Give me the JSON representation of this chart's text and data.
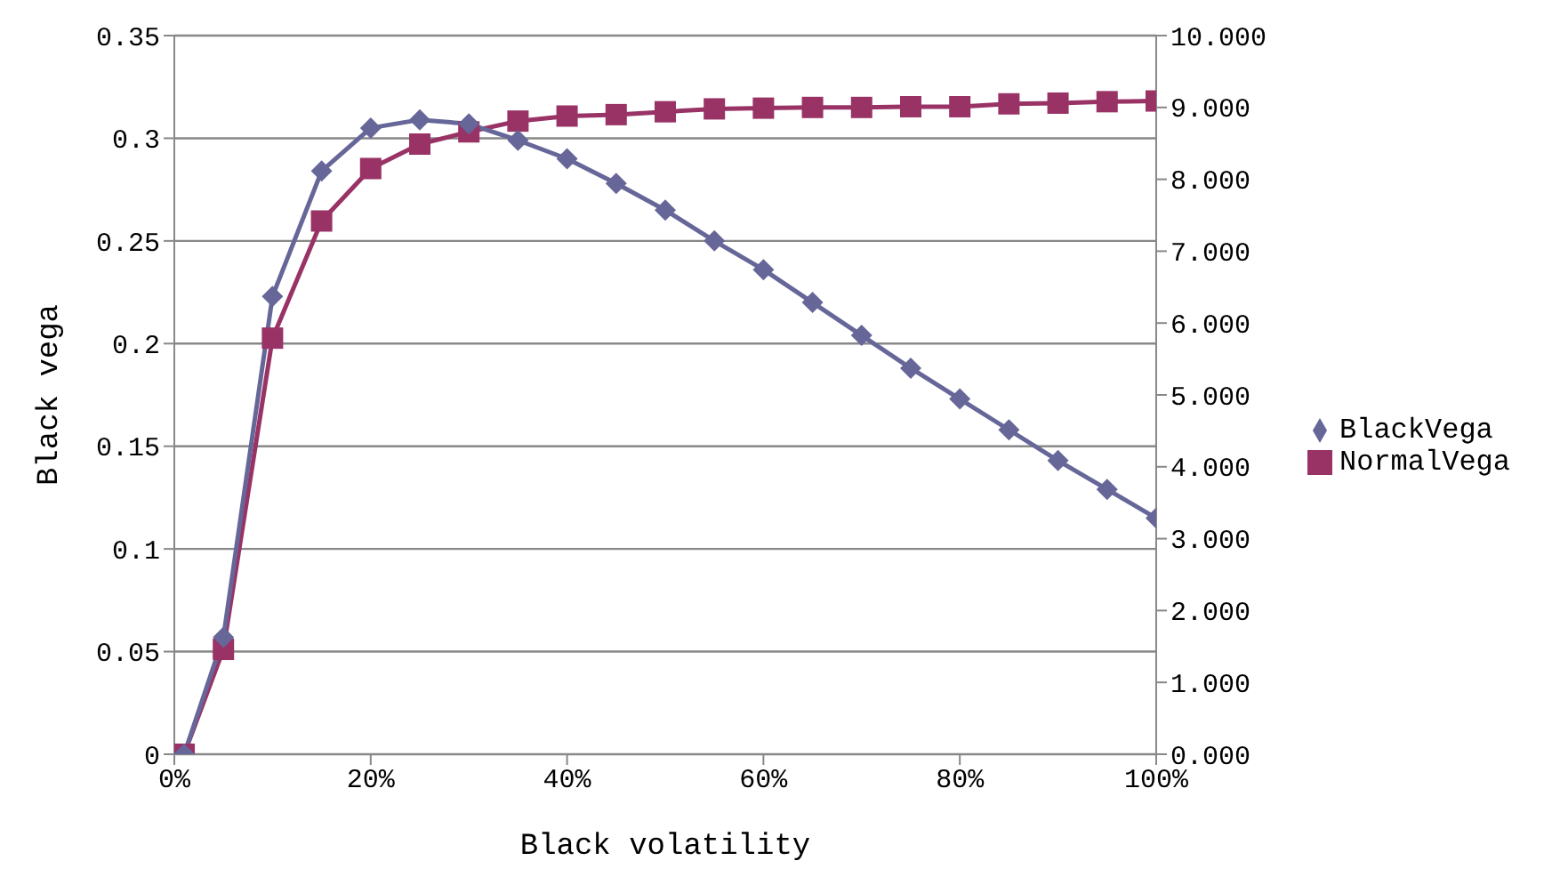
{
  "chart_data": {
    "type": "line",
    "xlabel": "Black volatility",
    "ylabel": "Black vega",
    "x": [
      0.01,
      0.05,
      0.1,
      0.15,
      0.2,
      0.25,
      0.3,
      0.35,
      0.4,
      0.45,
      0.5,
      0.55,
      0.6,
      0.65,
      0.7,
      0.75,
      0.8,
      0.85,
      0.9,
      0.95,
      1
    ],
    "series": [
      {
        "name": "BlackVega",
        "color": "#666699",
        "marker": "diamond",
        "values": [
          0,
          0.057,
          0.223,
          0.284,
          0.305,
          0.309,
          0.307,
          0.299,
          0.29,
          0.278,
          0.265,
          0.25,
          0.236,
          0.22,
          0.204,
          0.188,
          0.173,
          0.158,
          0.143,
          0.129,
          0.115
        ]
      },
      {
        "name": "NormalVega",
        "color": "#993366",
        "marker": "square",
        "axis": "y2",
        "values": [
          0,
          1.46,
          5.79,
          7.42,
          8.15,
          8.49,
          8.66,
          8.81,
          8.88,
          8.9,
          8.94,
          8.98,
          8.99,
          9.0,
          9.0,
          9.01,
          9.01,
          9.05,
          9.06,
          9.08,
          9.09
        ]
      }
    ],
    "xlim": [
      0,
      1
    ],
    "xticks": [
      {
        "value": 0,
        "label": "0%"
      },
      {
        "value": 0.2,
        "label": "20%"
      },
      {
        "value": 0.4,
        "label": "40%"
      },
      {
        "value": 0.6,
        "label": "60%"
      },
      {
        "value": 0.8,
        "label": "80%"
      },
      {
        "value": 1,
        "label": "100%"
      }
    ],
    "ylim": [
      0,
      0.35
    ],
    "yticks": [
      0,
      0.05,
      0.1,
      0.15,
      0.2,
      0.25,
      0.3,
      0.35
    ],
    "y2lim": [
      0,
      10
    ],
    "y2ticks": [
      {
        "value": 0,
        "label": "0.000"
      },
      {
        "value": 1,
        "label": "1.000"
      },
      {
        "value": 2,
        "label": "2.000"
      },
      {
        "value": 3,
        "label": "3.000"
      },
      {
        "value": 4,
        "label": "4.000"
      },
      {
        "value": 5,
        "label": "5.000"
      },
      {
        "value": 6,
        "label": "6.000"
      },
      {
        "value": 7,
        "label": "7.000"
      },
      {
        "value": 8,
        "label": "8.000"
      },
      {
        "value": 9,
        "label": "9.000"
      },
      {
        "value": 10,
        "label": "10.000"
      }
    ],
    "grid": "y",
    "legend": "right"
  }
}
